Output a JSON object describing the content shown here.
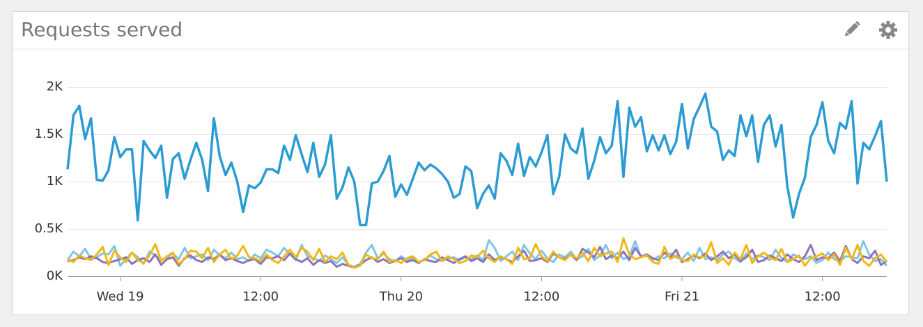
{
  "header": {
    "title": "Requests served"
  },
  "chart_data": {
    "type": "line",
    "x": [
      -4.5,
      -4,
      -3.5,
      -3,
      -2.5,
      -2,
      -1.5,
      -1,
      -0.5,
      0,
      0.5,
      1,
      1.5,
      2,
      2.5,
      3,
      3.5,
      4,
      4.5,
      5,
      5.5,
      6,
      6.5,
      7,
      7.5,
      8,
      8.5,
      9,
      9.5,
      10,
      10.5,
      11,
      11.5,
      12,
      12.5,
      13,
      13.5,
      14,
      14.5,
      15,
      15.5,
      16,
      16.5,
      17,
      17.5,
      18,
      18.5,
      19,
      19.5,
      20,
      20.5,
      21,
      21.5,
      22,
      22.5,
      23,
      23.5,
      24,
      24.5,
      25,
      25.5,
      26,
      26.5,
      27,
      27.5,
      28,
      28.5,
      29,
      29.5,
      30,
      30.5,
      31,
      31.5,
      32,
      32.5,
      33,
      33.5,
      34,
      34.5,
      35,
      35.5,
      36,
      36.5,
      37,
      37.5,
      38,
      38.5,
      39,
      39.5,
      40,
      40.5,
      41,
      41.5,
      42,
      42.5,
      43,
      43.5,
      44,
      44.5,
      45,
      45.5,
      46,
      46.5,
      47,
      47.5,
      48,
      48.5,
      49,
      49.5,
      50,
      50.5,
      51,
      51.5,
      52,
      52.5,
      53,
      53.5,
      54,
      54.5,
      55,
      55.5,
      56,
      56.5,
      57,
      57.5,
      58,
      58.5,
      59,
      59.5,
      60,
      60.5,
      61,
      61.5,
      62,
      62.5,
      63,
      63.5,
      64,
      64.5,
      65,
      65.5
    ],
    "series": [
      {
        "color": "#2b9cd3",
        "values": [
          1130,
          1700,
          1800,
          1450,
          1670,
          1020,
          1010,
          1120,
          1470,
          1260,
          1340,
          1340,
          590,
          1430,
          1330,
          1250,
          1380,
          830,
          1240,
          1300,
          1030,
          1230,
          1410,
          1230,
          900,
          1670,
          1270,
          1070,
          1200,
          1000,
          680,
          960,
          930,
          990,
          1130,
          1130,
          1090,
          1380,
          1230,
          1490,
          1290,
          1100,
          1410,
          1050,
          1180,
          1490,
          820,
          940,
          1150,
          1000,
          540,
          540,
          980,
          1000,
          1110,
          1270,
          840,
          970,
          860,
          1030,
          1200,
          1120,
          1180,
          1140,
          1080,
          1000,
          830,
          870,
          1160,
          1110,
          720,
          870,
          960,
          820,
          1300,
          1220,
          1070,
          1400,
          1060,
          1260,
          1160,
          1310,
          1490,
          870,
          1050,
          1500,
          1350,
          1300,
          1560,
          1030,
          1220,
          1470,
          1300,
          1380,
          1850,
          1050,
          1780,
          1580,
          1680,
          1320,
          1490,
          1330,
          1490,
          1290,
          1420,
          1820,
          1350,
          1660,
          1790,
          1930,
          1580,
          1530,
          1230,
          1330,
          1270,
          1700,
          1480,
          1700,
          1210,
          1600,
          1700,
          1370,
          1600,
          950,
          620,
          870,
          1040,
          1470,
          1600,
          1840,
          1430,
          1300,
          1620,
          1560,
          1850,
          980,
          1410,
          1340,
          1480,
          1640,
          1000
        ]
      },
      {
        "color": "#f0b812",
        "values": [
          180,
          150,
          220,
          190,
          170,
          230,
          310,
          120,
          270,
          200,
          150,
          250,
          170,
          140,
          220,
          340,
          160,
          210,
          250,
          130,
          180,
          270,
          260,
          190,
          300,
          150,
          230,
          280,
          180,
          220,
          320,
          200,
          190,
          160,
          230,
          170,
          140,
          210,
          280,
          200,
          300,
          260,
          170,
          290,
          150,
          210,
          180,
          250,
          120,
          90,
          110,
          230,
          190,
          180,
          260,
          150,
          170,
          140,
          190,
          210,
          150,
          170,
          230,
          260,
          160,
          210,
          180,
          140,
          160,
          220,
          200,
          270,
          190,
          150,
          210,
          180,
          130,
          300,
          180,
          190,
          340,
          210,
          160,
          260,
          200,
          170,
          230,
          190,
          250,
          160,
          300,
          210,
          240,
          260,
          150,
          400,
          230,
          180,
          200,
          220,
          150,
          130,
          310,
          180,
          220,
          170,
          160,
          230,
          200,
          210,
          360,
          140,
          190,
          120,
          250,
          180,
          330,
          140,
          210,
          250,
          200,
          170,
          290,
          150,
          180,
          220,
          110,
          190,
          210,
          240,
          170,
          230,
          120,
          300,
          180,
          330,
          160,
          110,
          190,
          230,
          150
        ]
      },
      {
        "color": "#8d74b9",
        "values": [
          160,
          170,
          200,
          180,
          210,
          190,
          150,
          140,
          160,
          180,
          200,
          130,
          170,
          190,
          150,
          230,
          120,
          180,
          200,
          110,
          190,
          220,
          170,
          150,
          200,
          180,
          230,
          170,
          190,
          160,
          140,
          170,
          180,
          130,
          200,
          190,
          210,
          170,
          240,
          180,
          150,
          190,
          120,
          170,
          140,
          160,
          100,
          130,
          110,
          90,
          120,
          170,
          200,
          150,
          180,
          140,
          160,
          190,
          150,
          170,
          140,
          180,
          160,
          150,
          200,
          170,
          140,
          180,
          210,
          160,
          190,
          150,
          230,
          170,
          200,
          180,
          150,
          210,
          270,
          160,
          170,
          190,
          150,
          240,
          200,
          180,
          230,
          170,
          290,
          250,
          200,
          310,
          180,
          220,
          190,
          260,
          170,
          300,
          210,
          230,
          190,
          170,
          250,
          200,
          280,
          150,
          180,
          220,
          190,
          240,
          170,
          210,
          260,
          190,
          230,
          160,
          200,
          280,
          150,
          170,
          220,
          190,
          160,
          230,
          180,
          150,
          210,
          330,
          170,
          200,
          190,
          250,
          160,
          320,
          180,
          140,
          210,
          190,
          270,
          120,
          160
        ]
      },
      {
        "color": "#80c5e8",
        "values": [
          170,
          260,
          210,
          290,
          180,
          200,
          240,
          230,
          320,
          110,
          180,
          250,
          200,
          130,
          260,
          220,
          170,
          200,
          240,
          180,
          300,
          190,
          210,
          230,
          170,
          280,
          220,
          190,
          250,
          180,
          200,
          160,
          230,
          190,
          280,
          250,
          210,
          300,
          230,
          170,
          330,
          210,
          190,
          160,
          220,
          180,
          140,
          200,
          120,
          100,
          130,
          250,
          330,
          190,
          240,
          180,
          160,
          210,
          170,
          190,
          150,
          170,
          220,
          180,
          160,
          190,
          200,
          170,
          200,
          180,
          220,
          170,
          380,
          300,
          160,
          210,
          260,
          170,
          330,
          240,
          180,
          270,
          190,
          150,
          230,
          200,
          260,
          180,
          210,
          290,
          170,
          220,
          330,
          190,
          250,
          180,
          210,
          370,
          200,
          230,
          170,
          210,
          190,
          240,
          200,
          180,
          250,
          160,
          300,
          180,
          200,
          170,
          230,
          260,
          190,
          150,
          240,
          180,
          220,
          200,
          170,
          280,
          190,
          150,
          230,
          200,
          180,
          210,
          140,
          170,
          250,
          180,
          160,
          210,
          200,
          190,
          370,
          230,
          160,
          180,
          110
        ]
      }
    ],
    "xlim": [
      -4.5,
      65.5
    ],
    "xticks": [
      {
        "value": 0,
        "label": "Wed 19"
      },
      {
        "value": 12,
        "label": "12:00"
      },
      {
        "value": 24,
        "label": "Thu 20"
      },
      {
        "value": 36,
        "label": "12:00"
      },
      {
        "value": 48,
        "label": "Fri 21"
      },
      {
        "value": 60,
        "label": "12:00"
      }
    ],
    "ylim": [
      0,
      2000
    ],
    "yticks": [
      {
        "value": 0,
        "label": "0K"
      },
      {
        "value": 500,
        "label": "0.5K"
      },
      {
        "value": 1000,
        "label": "1K"
      },
      {
        "value": 1500,
        "label": "1.5K"
      },
      {
        "value": 2000,
        "label": "2K"
      }
    ],
    "grid": true
  }
}
